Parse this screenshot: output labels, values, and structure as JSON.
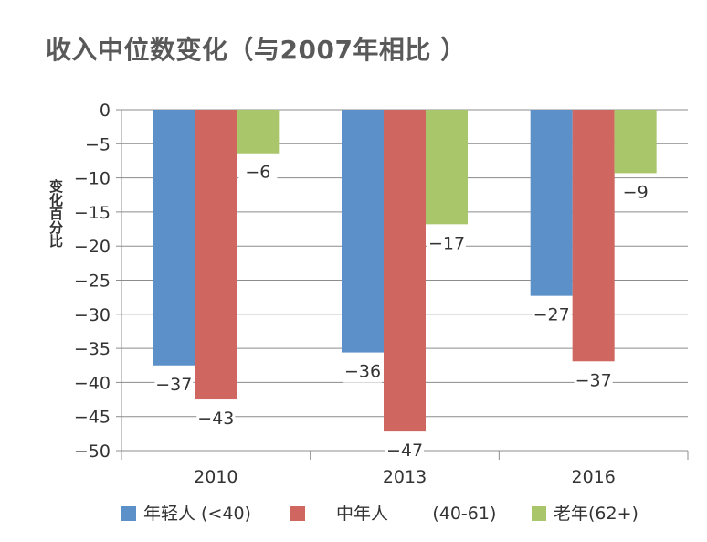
{
  "chart_data": {
    "type": "bar",
    "title": "收入中位数变化（与2007年相比 ）",
    "xlabel": "",
    "ylabel": "变化百分比",
    "categories": [
      "2010",
      "2013",
      "2016"
    ],
    "series": [
      {
        "name": "年轻人 (<40)",
        "color": "#5b91c8",
        "values": [
          -37.5,
          -35.6,
          -27.3
        ]
      },
      {
        "name": "中年人        (40-61)",
        "color": "#cf6760",
        "values": [
          -42.5,
          -47.2,
          -36.9
        ]
      },
      {
        "name": "老年(62+)",
        "color": "#a9c66a",
        "values": [
          -6.4,
          -16.8,
          -9.3
        ]
      }
    ],
    "data_labels": [
      [
        "-37",
        "-43",
        "-6"
      ],
      [
        "-36",
        "-47",
        "-17"
      ],
      [
        "-27",
        "-37",
        "-9"
      ]
    ],
    "ylim": [
      -50,
      0
    ],
    "yticks": [
      0,
      -5,
      -10,
      -15,
      -20,
      -25,
      -30,
      -35,
      -40,
      -45,
      -50
    ],
    "grid": true,
    "legend_position": "bottom"
  }
}
